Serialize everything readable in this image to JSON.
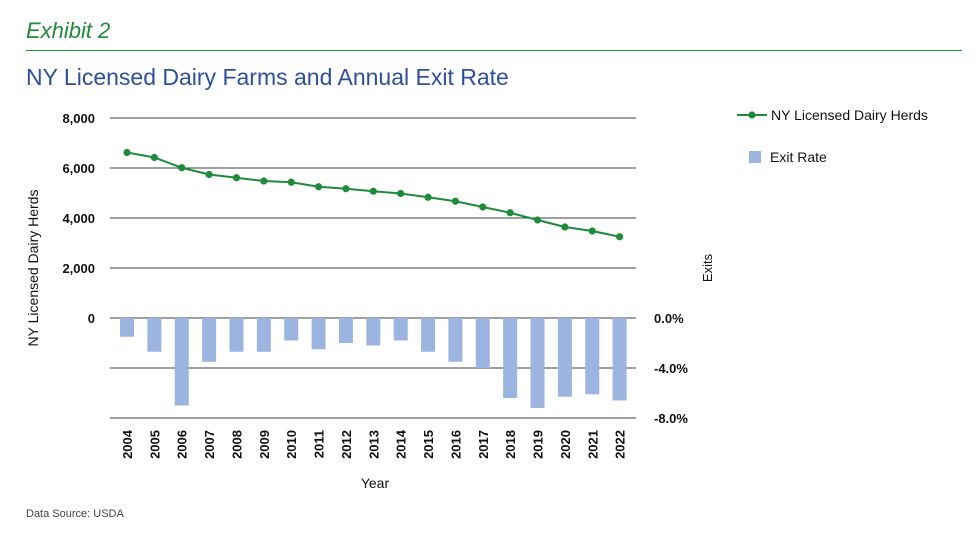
{
  "header": {
    "exhibit": "Exhibit 2",
    "title": "NY Licensed Dairy Farms and Annual Exit Rate"
  },
  "footer": {
    "source": "Data Source: USDA"
  },
  "colors": {
    "line": "#1e8b3a",
    "bar": "#9bb4e0",
    "title": "#2e4f9e",
    "grid": "#000000"
  },
  "chart_data": {
    "type": "bar+line",
    "xlabel": "Year",
    "ylabel_left": "NY Licensed Dairy Herds",
    "ylabel_right": "Exits",
    "left_ticks": [
      "8,000",
      "6,000",
      "4,000",
      "2,000",
      "0"
    ],
    "left_tick_values": [
      8000,
      6000,
      4000,
      2000,
      0
    ],
    "right_ticks": [
      "0.0%",
      "-4.0%",
      "-8.0%"
    ],
    "right_tick_values": [
      0,
      -4,
      -8
    ],
    "legend_position": "top-right",
    "categories": [
      "2004",
      "2005",
      "2006",
      "2007",
      "2008",
      "2009",
      "2010",
      "2011",
      "2012",
      "2013",
      "2014",
      "2015",
      "2016",
      "2017",
      "2018",
      "2019",
      "2020",
      "2021",
      "2022"
    ],
    "series": [
      {
        "name": "NY Licensed Dairy Herds",
        "type": "line",
        "axis": "left",
        "values": [
          6620,
          6420,
          6010,
          5740,
          5610,
          5480,
          5430,
          5250,
          5170,
          5070,
          4980,
          4830,
          4670,
          4440,
          4210,
          3920,
          3640,
          3480,
          3250
        ]
      },
      {
        "name": "Exit Rate",
        "type": "bar",
        "axis": "right",
        "values": [
          -1.5,
          -2.7,
          -7.0,
          -3.5,
          -2.7,
          -2.7,
          -1.8,
          -2.5,
          -2.0,
          -2.2,
          -1.8,
          -2.7,
          -3.5,
          -4.0,
          -6.4,
          -7.2,
          -6.3,
          -6.1,
          -6.6
        ]
      }
    ]
  }
}
